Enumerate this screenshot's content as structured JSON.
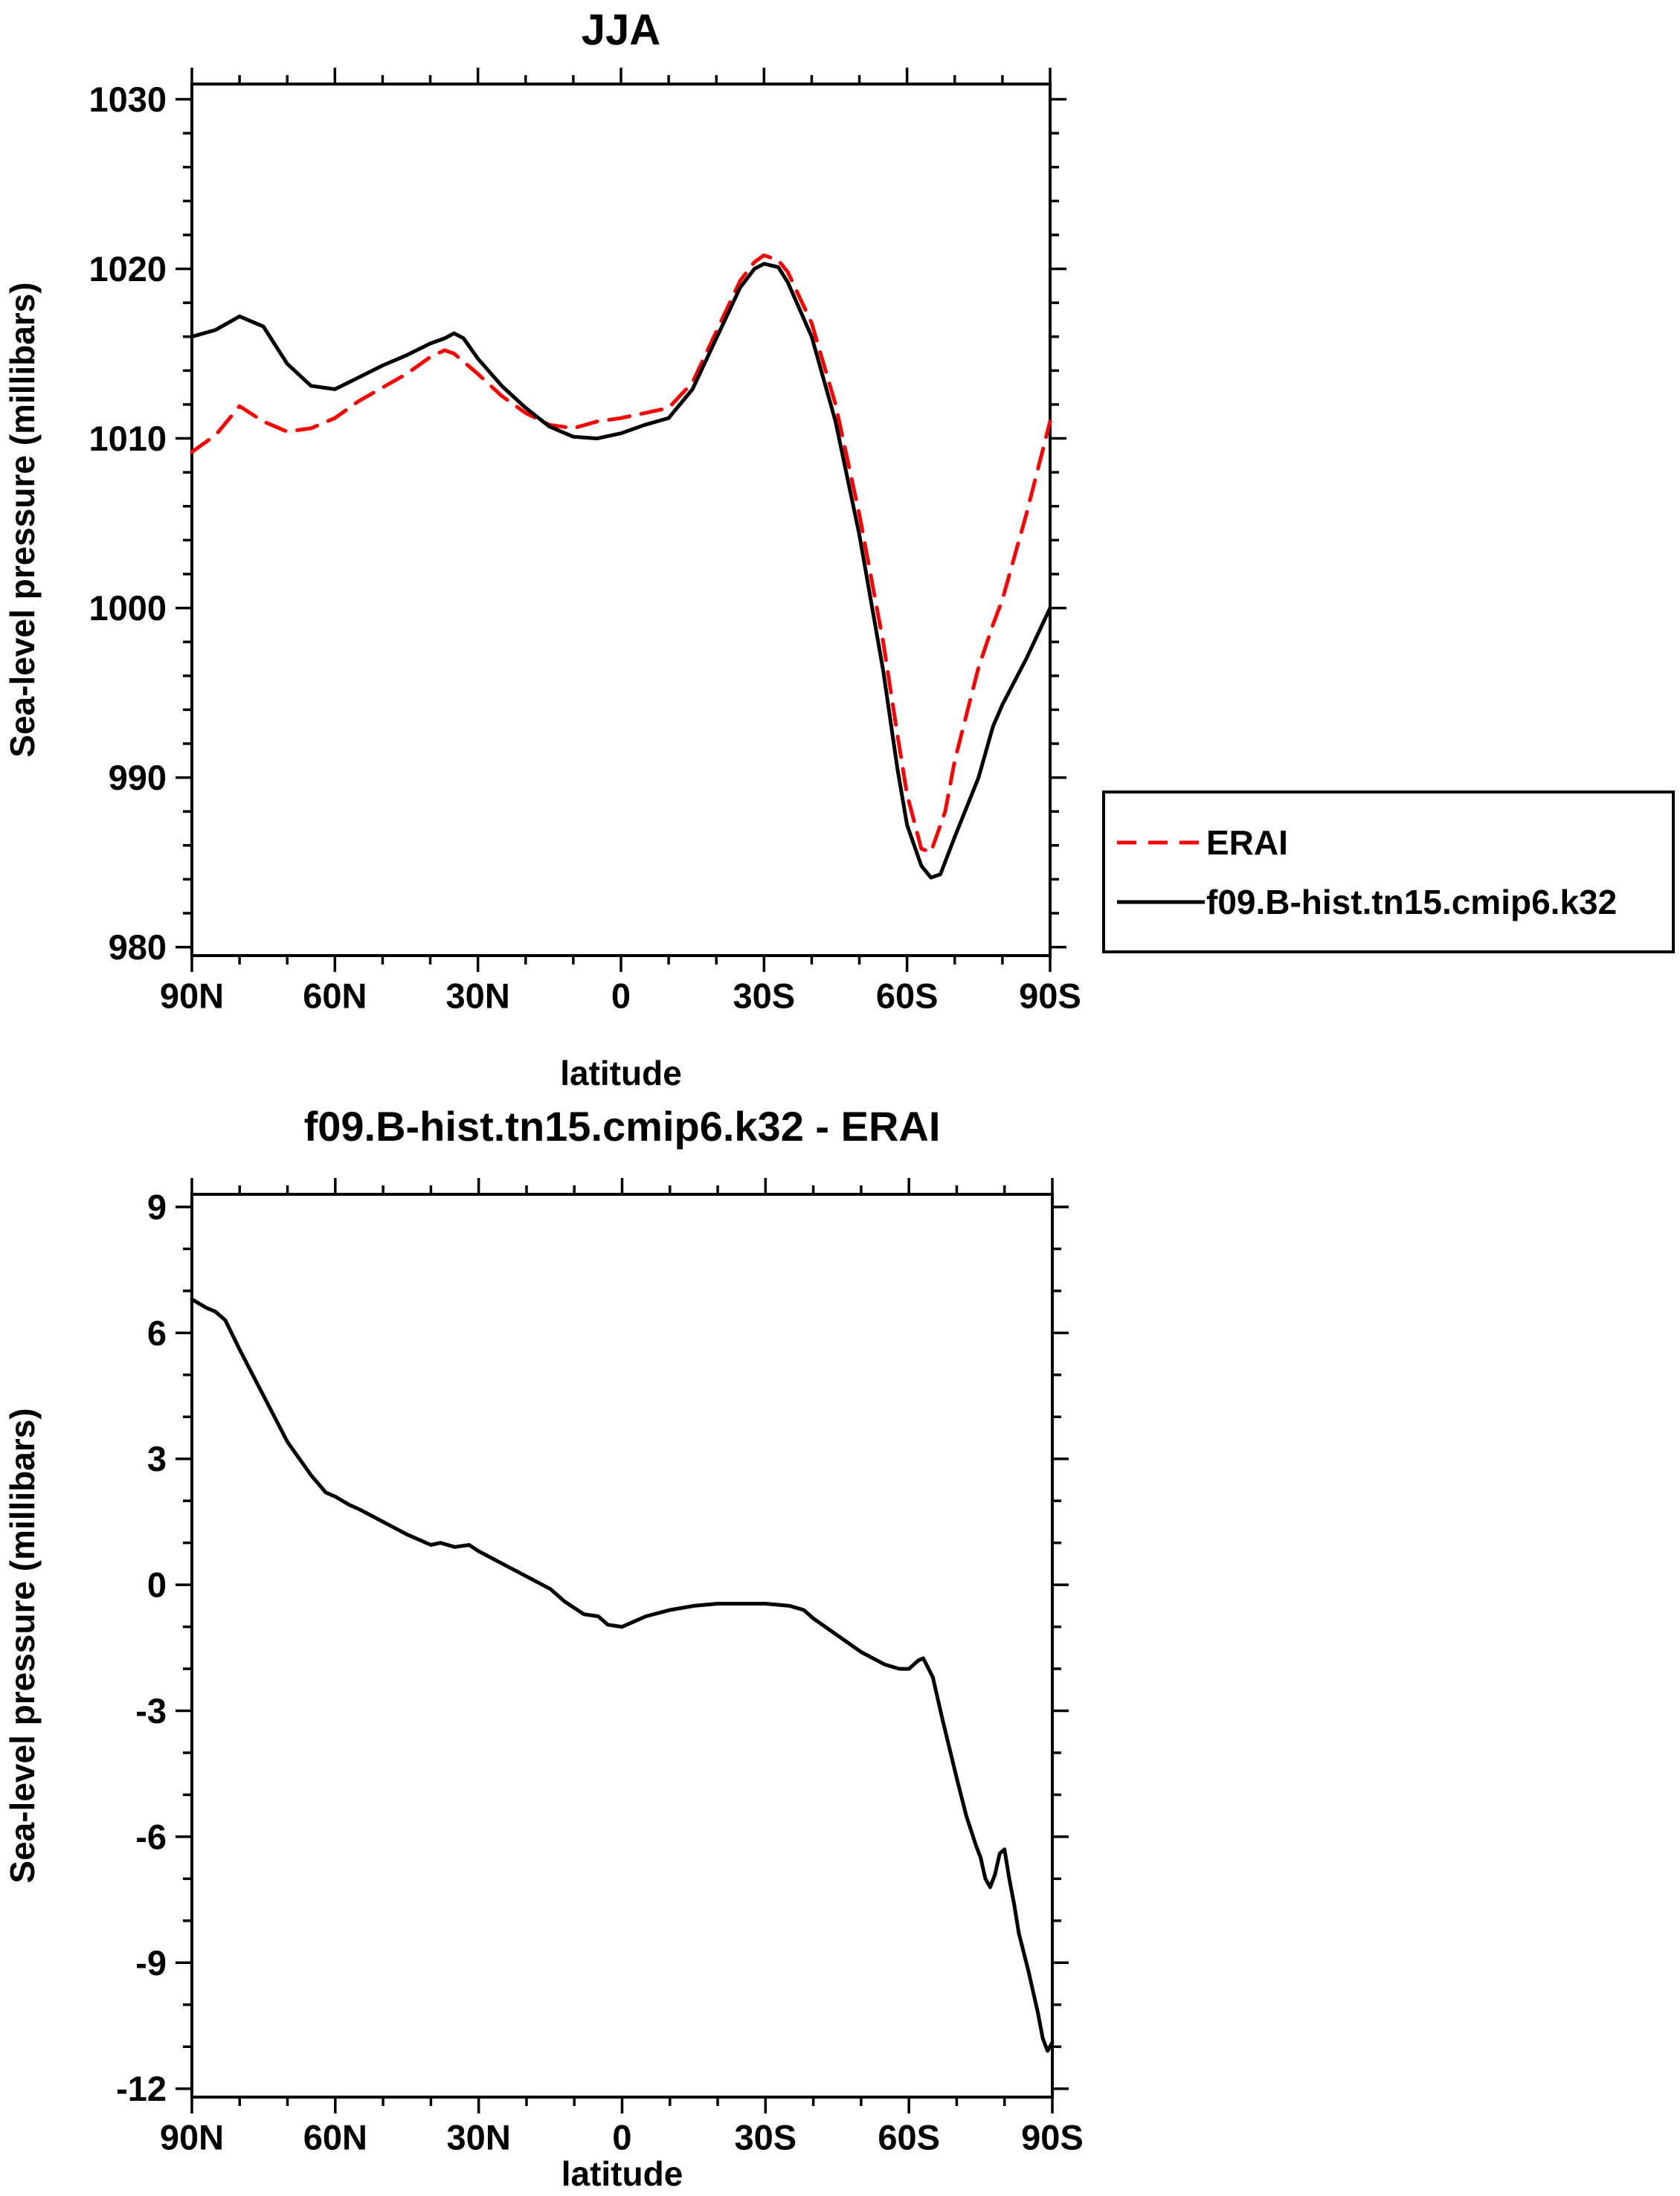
{
  "chart_data": [
    {
      "id": "top",
      "type": "line",
      "title": "JJA",
      "xlabel": "latitude",
      "ylabel": "Sea-level pressure (millibars)",
      "xlim": [
        90,
        -90
      ],
      "ylim": [
        979.5,
        1030.9
      ],
      "grid": false,
      "x_major_ticks": [
        90,
        60,
        30,
        0,
        -30,
        -60,
        -90
      ],
      "x_tick_labels": [
        "90N",
        "60N",
        "30N",
        "0",
        "30S",
        "60S",
        "90S"
      ],
      "x_minor_step": 10,
      "y_major_ticks": [
        980,
        990,
        1000,
        1010,
        1020,
        1030
      ],
      "y_minor_step": 2,
      "legend": {
        "position": "outside-right",
        "entries": [
          {
            "label": "ERAI",
            "color": "#ff0000",
            "style": "dashed"
          },
          {
            "label": "f09.B-hist.tn15.cmip6.k32",
            "color": "#000000",
            "style": "solid"
          }
        ]
      },
      "series": [
        {
          "name": "ERAI",
          "color": "#ff0000",
          "style": "dashed",
          "x": [
            90,
            85,
            80,
            75,
            70,
            65,
            60,
            55,
            50,
            45,
            40,
            37,
            35,
            30,
            25,
            20,
            15,
            10,
            5,
            0,
            -5,
            -10,
            -15,
            -20,
            -25,
            -28,
            -30,
            -33,
            -35,
            -40,
            -45,
            -50,
            -55,
            -58,
            -60,
            -63,
            -65,
            -68,
            -70,
            -75,
            -78,
            -80,
            -85,
            -90
          ],
          "y": [
            1009.2,
            1010.2,
            1011.9,
            1011.0,
            1010.4,
            1010.6,
            1011.2,
            1012.2,
            1013.0,
            1013.8,
            1014.8,
            1015.2,
            1015.0,
            1013.8,
            1012.5,
            1011.5,
            1010.8,
            1010.6,
            1011.0,
            1011.2,
            1011.5,
            1011.8,
            1013.3,
            1016.3,
            1019.3,
            1020.4,
            1020.8,
            1020.5,
            1019.8,
            1016.8,
            1012.0,
            1005.5,
            998.0,
            992.5,
            989.0,
            985.8,
            985.6,
            988.0,
            991.0,
            996.5,
            999.0,
            1000.5,
            1005.5,
            1011.0
          ]
        },
        {
          "name": "f09.B-hist.tn15.cmip6.k32",
          "color": "#000000",
          "style": "solid",
          "x": [
            90,
            85,
            80,
            75,
            70,
            65,
            60,
            55,
            50,
            45,
            40,
            37,
            35,
            33,
            30,
            25,
            20,
            15,
            10,
            5,
            0,
            -5,
            -10,
            -15,
            -20,
            -25,
            -28,
            -30,
            -33,
            -35,
            -40,
            -45,
            -50,
            -55,
            -58,
            -60,
            -63,
            -65,
            -67,
            -70,
            -75,
            -78,
            -80,
            -85,
            -90
          ],
          "y": [
            1016.0,
            1016.4,
            1017.2,
            1016.6,
            1014.4,
            1013.1,
            1012.9,
            1013.6,
            1014.3,
            1014.9,
            1015.6,
            1015.9,
            1016.2,
            1015.9,
            1014.7,
            1013.1,
            1011.8,
            1010.7,
            1010.1,
            1010.0,
            1010.3,
            1010.8,
            1011.2,
            1012.9,
            1015.9,
            1018.9,
            1020.0,
            1020.3,
            1020.1,
            1019.2,
            1016.0,
            1011.0,
            1004.3,
            996.3,
            990.5,
            987.2,
            984.8,
            984.1,
            984.3,
            986.5,
            990.0,
            993.0,
            994.3,
            997.0,
            1000.0
          ]
        }
      ]
    },
    {
      "id": "diff",
      "type": "line",
      "title": "f09.B-hist.tn15.cmip6.k32 - ERAI",
      "xlabel": "latitude",
      "ylabel": "Sea-level pressure (millibars)",
      "xlim": [
        90,
        -90
      ],
      "ylim": [
        -12.2,
        9.3
      ],
      "grid": false,
      "x_major_ticks": [
        90,
        60,
        30,
        0,
        -30,
        -60,
        -90
      ],
      "x_tick_labels": [
        "90N",
        "60N",
        "30N",
        "0",
        "30S",
        "60S",
        "90S"
      ],
      "x_minor_step": 10,
      "y_major_ticks": [
        -12,
        -9,
        -6,
        -3,
        0,
        3,
        6,
        9
      ],
      "y_minor_step": 1,
      "series": [
        {
          "name": "f09.B-hist.tn15.cmip6.k32 minus ERAI",
          "color": "#000000",
          "style": "solid",
          "x": [
            90,
            87,
            85,
            83,
            80,
            75,
            70,
            65,
            62,
            60,
            57,
            55,
            50,
            45,
            42,
            40,
            38,
            35,
            32,
            30,
            25,
            20,
            15,
            12,
            10,
            8,
            5,
            3,
            0,
            -3,
            -5,
            -10,
            -15,
            -20,
            -25,
            -30,
            -35,
            -38,
            -40,
            -45,
            -50,
            -55,
            -58,
            -60,
            -62,
            -63,
            -65,
            -67,
            -70,
            -72,
            -74,
            -75,
            -76,
            -77,
            -78,
            -79,
            -80,
            -81,
            -82,
            -83,
            -85,
            -87,
            -88,
            -89,
            -90
          ],
          "y": [
            6.8,
            6.6,
            6.5,
            6.3,
            5.6,
            4.5,
            3.4,
            2.6,
            2.2,
            2.1,
            1.9,
            1.8,
            1.5,
            1.2,
            1.05,
            0.95,
            1.0,
            0.9,
            0.95,
            0.8,
            0.5,
            0.2,
            -0.1,
            -0.4,
            -0.55,
            -0.7,
            -0.75,
            -0.95,
            -1.0,
            -0.85,
            -0.75,
            -0.6,
            -0.5,
            -0.45,
            -0.45,
            -0.45,
            -0.5,
            -0.6,
            -0.8,
            -1.2,
            -1.6,
            -1.9,
            -2.0,
            -2.0,
            -1.8,
            -1.75,
            -2.2,
            -3.2,
            -4.6,
            -5.5,
            -6.2,
            -6.5,
            -7.0,
            -7.2,
            -6.9,
            -6.4,
            -6.3,
            -7.0,
            -7.6,
            -8.3,
            -9.2,
            -10.2,
            -10.8,
            -11.1,
            -10.9
          ]
        }
      ]
    }
  ],
  "colors": {
    "axis": "#000000",
    "erai": "#ff0000",
    "model": "#000000",
    "background": "#ffffff"
  }
}
